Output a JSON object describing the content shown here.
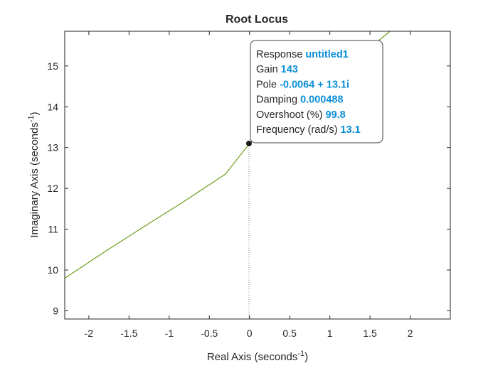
{
  "chart_data": {
    "type": "line",
    "title": "Root Locus",
    "xlabel": "Real Axis (seconds",
    "ylabel": "Imaginary Axis (seconds",
    "label_superscript": "-1",
    "label_close": ")",
    "xlim": [
      -2.3,
      2.5
    ],
    "ylim": [
      8.8,
      15.85
    ],
    "xticks": [
      -2,
      -1.5,
      -1,
      -0.5,
      0,
      0.5,
      1,
      1.5,
      2
    ],
    "xtick_labels": [
      "-2",
      "-1.5",
      "-1",
      "-0.5",
      "0",
      "0.5",
      "1",
      "1.5",
      "2"
    ],
    "yticks": [
      9,
      10,
      11,
      12,
      13,
      14,
      15
    ],
    "ytick_labels": [
      "9",
      "10",
      "11",
      "12",
      "13",
      "14",
      "15"
    ],
    "grid": false,
    "line_color": "#6e9e1c",
    "series": [
      {
        "x": [
          -2.3,
          -1.8,
          -1.3,
          -0.8,
          -0.3,
          0.0,
          0.5,
          1.0,
          1.5,
          1.75
        ],
        "y": [
          9.8,
          10.45,
          11.08,
          11.7,
          12.35,
          13.1,
          13.95,
          14.7,
          15.45,
          15.85
        ]
      }
    ],
    "marked_point": {
      "x": -0.0064,
      "y": 13.1
    },
    "datatip": {
      "lines": [
        {
          "label": "Response",
          "value": "untitled1"
        },
        {
          "label": "Gain",
          "value": "143"
        },
        {
          "label": "Pole",
          "value": "-0.0064 + 13.1i"
        },
        {
          "label": "Damping",
          "value": "0.000488"
        },
        {
          "label": "Overshoot (%)",
          "value": "99.8"
        },
        {
          "label": "Frequency (rad/s)",
          "value": "13.1"
        }
      ]
    }
  }
}
